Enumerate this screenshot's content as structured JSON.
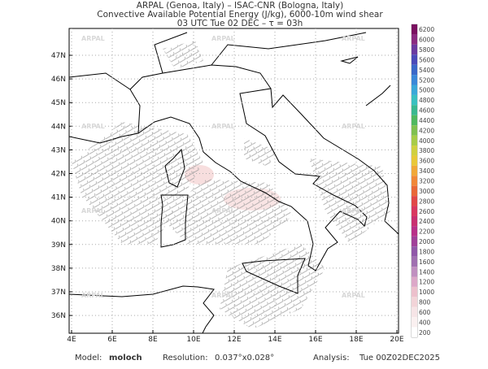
{
  "header": {
    "line1": "ARPAL (Genoa, Italy)  –  ISAC-CNR (Bologna, Italy)",
    "line2": "Convective Available Potential Energy (J/kg), 6000-10m wind shear",
    "line3": "03 UTC Tue 02 DEC  –  τ = 03h"
  },
  "map": {
    "lat_labels": [
      "47N",
      "46N",
      "45N",
      "44N",
      "43N",
      "42N",
      "41N",
      "40N",
      "39N",
      "38N",
      "37N",
      "36N"
    ],
    "lon_labels": [
      "4E",
      "6E",
      "8E",
      "10E",
      "12E",
      "14E",
      "16E",
      "18E",
      "20E"
    ],
    "watermark": "ARPAL"
  },
  "colorbar": {
    "levels": [
      6200,
      6000,
      5800,
      5600,
      5400,
      5200,
      5000,
      4800,
      4600,
      4400,
      4200,
      4000,
      3800,
      3600,
      3400,
      3200,
      3000,
      2800,
      2600,
      2400,
      2200,
      2000,
      1800,
      1600,
      1400,
      1200,
      1000,
      800,
      600,
      400,
      200
    ]
  },
  "footer": {
    "model_label": "Model:",
    "model": "moloch",
    "resolution_label": "Resolution:",
    "resolution": "0.037°x0.028°",
    "analysis_label": "Analysis:",
    "analysis": "Tue 00Z02DEC2025"
  }
}
